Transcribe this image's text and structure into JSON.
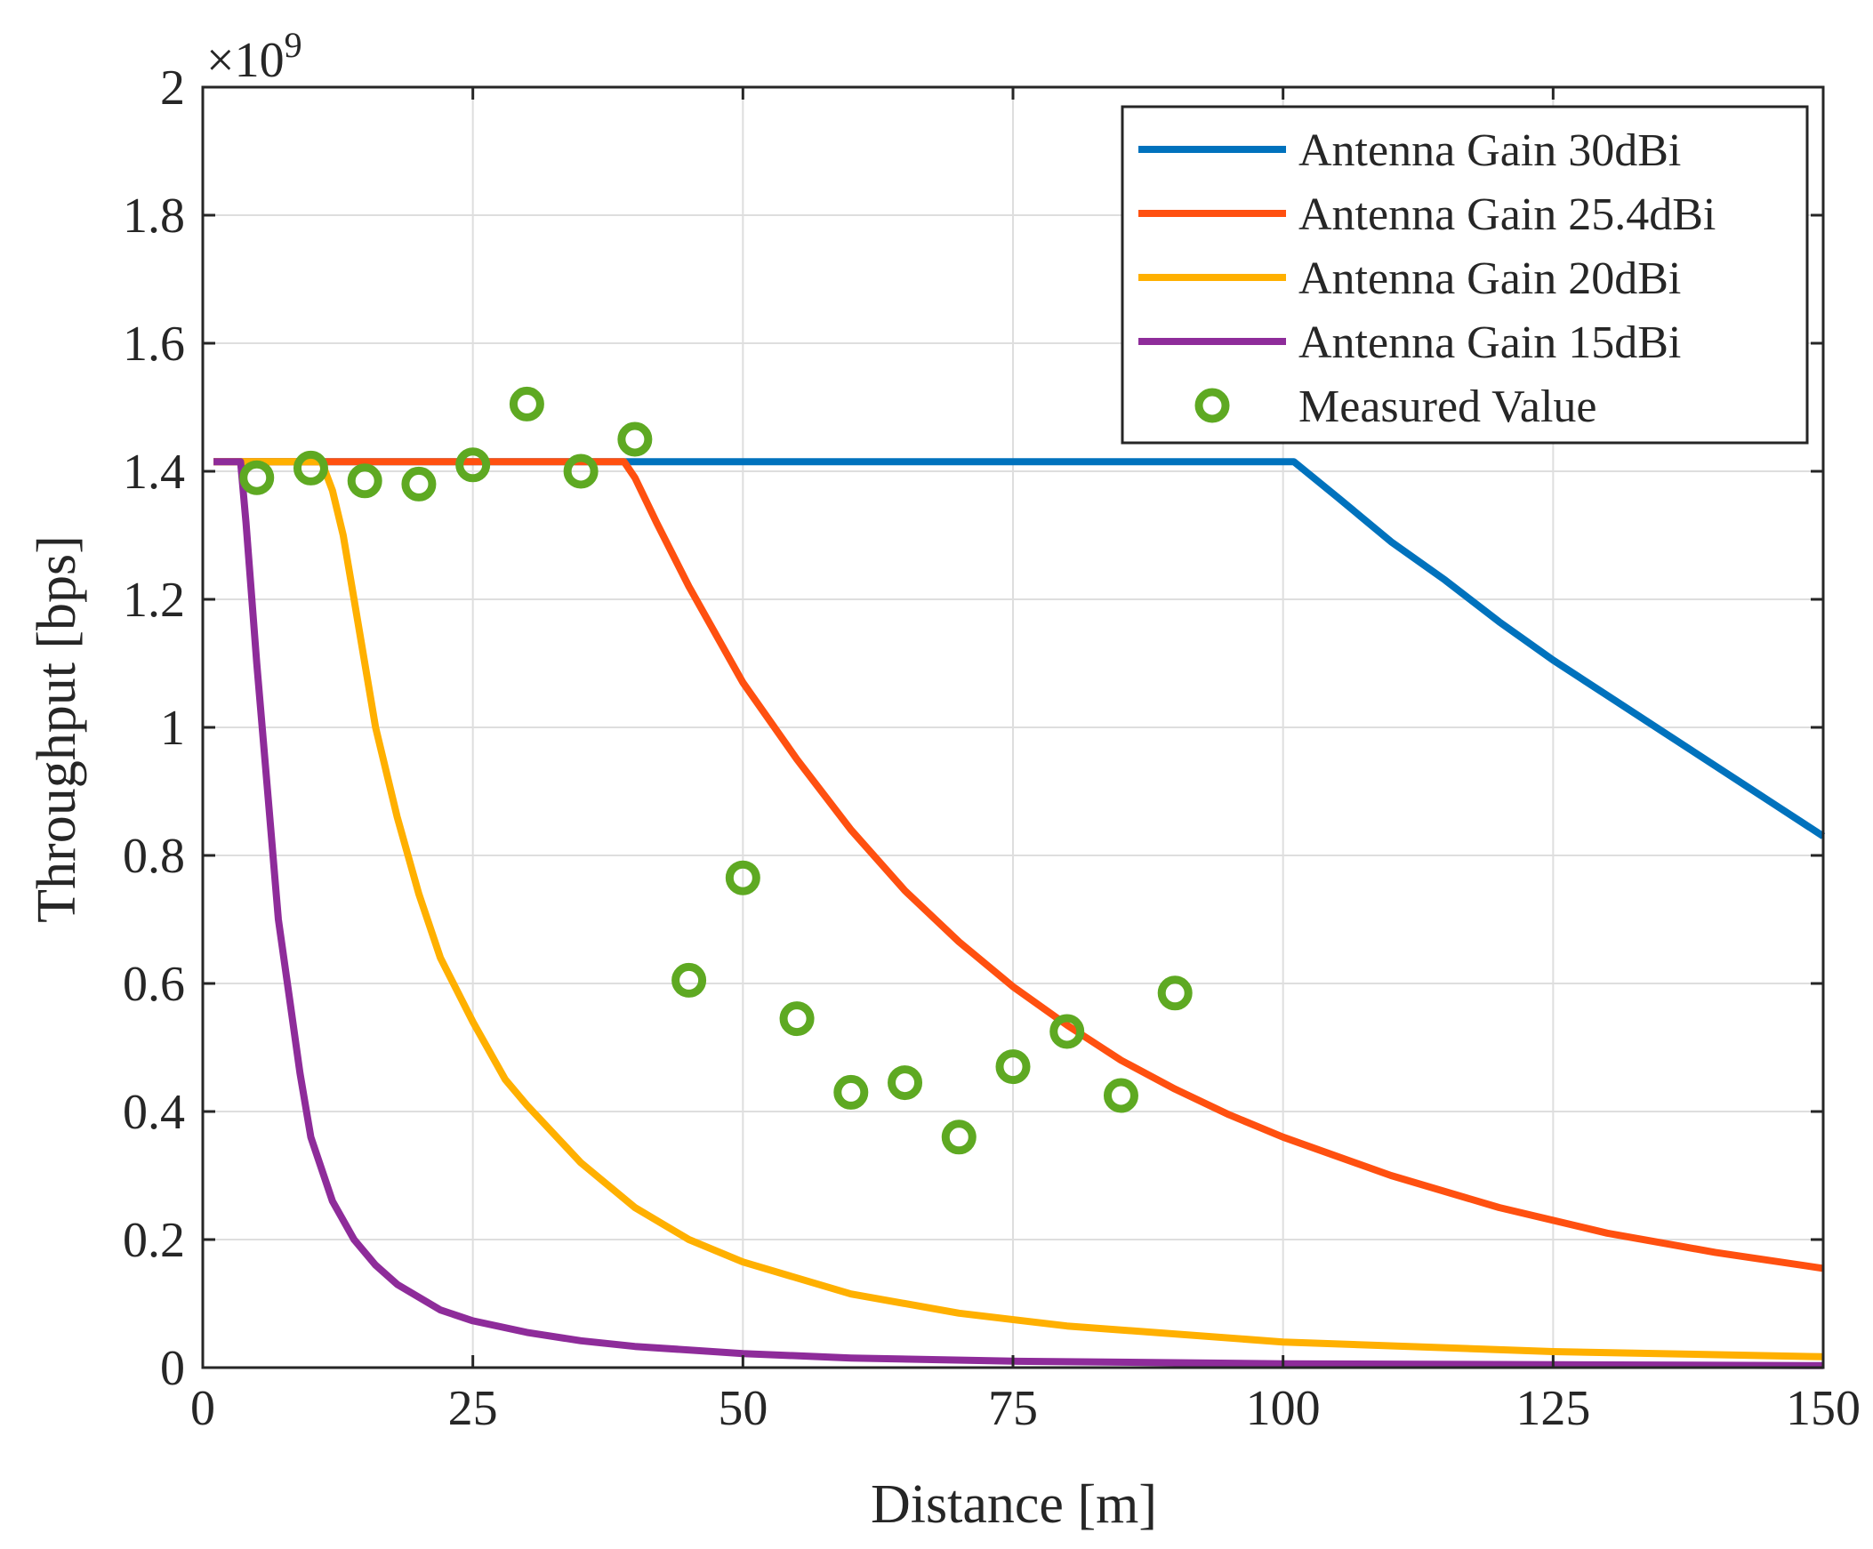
{
  "chart_data": {
    "type": "line",
    "title": "",
    "xlabel": "Distance [m]",
    "ylabel": "Throughput [bps]",
    "y_exponent_label": "×10",
    "y_exponent_power": "9",
    "xlim": [
      0,
      150
    ],
    "ylim": [
      0,
      2
    ],
    "grid": true,
    "legend_position": "top-right",
    "x_ticks": [
      0,
      25,
      50,
      75,
      100,
      125,
      150
    ],
    "x_tick_labels": [
      "0",
      "25",
      "50",
      "75",
      "100",
      "125",
      "150"
    ],
    "y_ticks": [
      0,
      0.2,
      0.4,
      0.6,
      0.8,
      1.0,
      1.2,
      1.4,
      1.6,
      1.8,
      2.0
    ],
    "y_tick_labels": [
      "0",
      "0.2",
      "0.4",
      "0.6",
      "0.8",
      "1",
      "1.2",
      "1.4",
      "1.6",
      "1.8",
      "2"
    ],
    "series": [
      {
        "name": "Antenna Gain 30dBi",
        "color": "#0072BD",
        "type": "line",
        "x": [
          1,
          101,
          105,
          110,
          115,
          120,
          125,
          130,
          135,
          140,
          145,
          150
        ],
        "y": [
          1.415,
          1.415,
          1.36,
          1.29,
          1.23,
          1.165,
          1.105,
          1.05,
          0.995,
          0.94,
          0.885,
          0.83
        ]
      },
      {
        "name": "Antenna Gain 25.4dBi",
        "color": "#FF5010",
        "type": "line",
        "x": [
          1,
          39,
          40,
          42,
          45,
          50,
          55,
          60,
          65,
          70,
          75,
          80,
          85,
          90,
          95,
          100,
          110,
          120,
          130,
          140,
          150
        ],
        "y": [
          1.415,
          1.415,
          1.39,
          1.32,
          1.22,
          1.07,
          0.95,
          0.84,
          0.745,
          0.665,
          0.595,
          0.535,
          0.48,
          0.435,
          0.395,
          0.36,
          0.3,
          0.25,
          0.21,
          0.18,
          0.155
        ]
      },
      {
        "name": "Antenna Gain 20dBi",
        "color": "#FFB000",
        "type": "line",
        "x": [
          1,
          11,
          12,
          13,
          14,
          15,
          16,
          18,
          20,
          22,
          25,
          28,
          30,
          35,
          40,
          45,
          50,
          60,
          70,
          80,
          100,
          125,
          150
        ],
        "y": [
          1.415,
          1.415,
          1.37,
          1.3,
          1.2,
          1.1,
          1.0,
          0.86,
          0.74,
          0.64,
          0.54,
          0.45,
          0.41,
          0.32,
          0.25,
          0.2,
          0.165,
          0.115,
          0.085,
          0.065,
          0.04,
          0.025,
          0.017
        ]
      },
      {
        "name": "Antenna Gain 15dBi",
        "color": "#8E2C9A",
        "type": "line",
        "x": [
          1,
          3.5,
          4,
          5,
          6,
          7,
          8,
          9,
          10,
          12,
          14,
          16,
          18,
          20,
          22,
          25,
          30,
          35,
          40,
          50,
          60,
          75,
          100,
          150
        ],
        "y": [
          1.415,
          1.415,
          1.32,
          1.1,
          0.9,
          0.7,
          0.58,
          0.46,
          0.36,
          0.26,
          0.2,
          0.16,
          0.13,
          0.11,
          0.09,
          0.073,
          0.055,
          0.042,
          0.033,
          0.022,
          0.015,
          0.01,
          0.006,
          0.003
        ]
      },
      {
        "name": "Measured Value",
        "color": "#5EA922",
        "type": "scatter",
        "x": [
          5,
          10,
          15,
          20,
          25,
          30,
          35,
          40,
          45,
          50,
          55,
          60,
          65,
          70,
          75,
          80,
          85,
          90
        ],
        "y": [
          1.39,
          1.405,
          1.385,
          1.38,
          1.41,
          1.505,
          1.4,
          1.45,
          0.605,
          0.765,
          0.545,
          0.43,
          0.445,
          0.36,
          0.47,
          0.525,
          0.425,
          0.585
        ]
      }
    ]
  }
}
